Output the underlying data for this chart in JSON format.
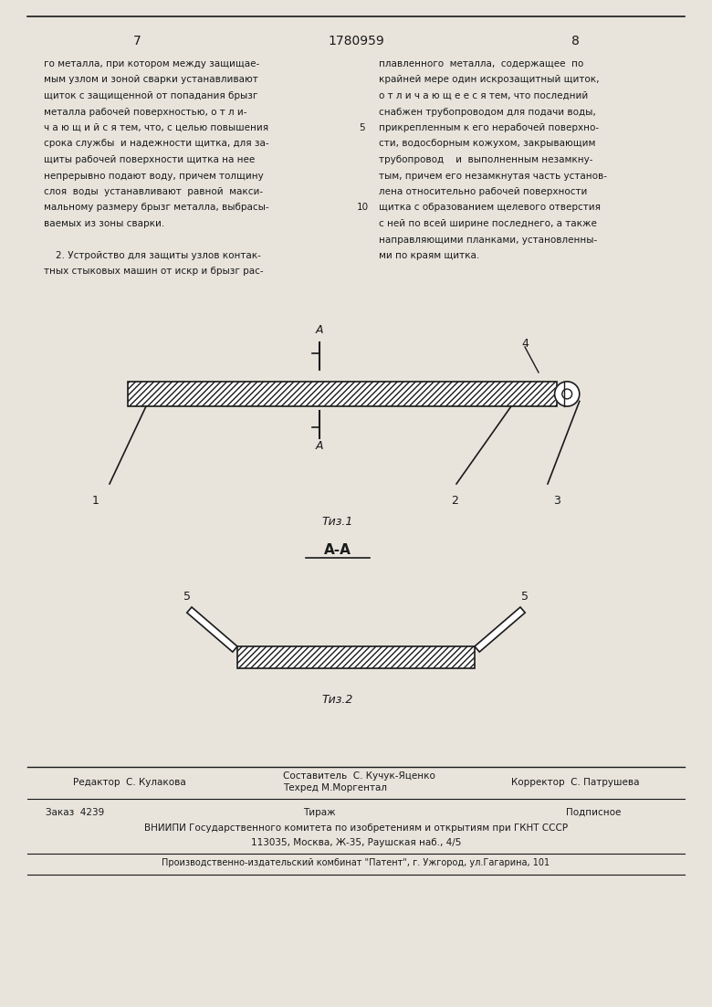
{
  "page_width": 7.8,
  "page_height": 11.03,
  "background_color": "#e8e4dc",
  "page_num_left": "7",
  "page_num_center": "1780959",
  "page_num_right": "8",
  "text_color": "#1a1a1a",
  "line_color": "#1a1a1a",
  "left_column_text": [
    "го металла, при котором между защищае-",
    "мым узлом и зоной сварки устанавливают",
    "щиток с защищенной от попадания брызг",
    "металла рабочей поверхностью, о т л и-",
    "ч а ю щ и й с я тем, что, с целью повышения",
    "срока службы  и надежности щитка, для за-",
    "щиты рабочей поверхности щитка на нее",
    "непрерывно подают воду, причем толщину",
    "слоя  воды  устанавливают  равной  макси-",
    "мальному размеру брызг металла, выбрасы-",
    "ваемых из зоны сварки.",
    "",
    "    2. Устройство для защиты узлов контак-",
    "тных стыковых машин от искр и брызг рас-"
  ],
  "right_column_text": [
    "плавленного  металла,  содержащее  по",
    "крайней мере один искрозащитный щиток,",
    "о т л и ч а ю щ е е с я тем, что последний",
    "снабжен трубопроводом для подачи воды,",
    "прикрепленным к его нерабочей поверхно-",
    "сти, водосборным кожухом, закрывающим",
    "трубопровод    и  выполненным незамкну-",
    "тым, причем его незамкнутая часть установ-",
    "лена относительно рабочей поверхности",
    "щитка с образованием щелевого отверстия",
    "с ней по всей ширине последнего, а также",
    "направляющими планками, установленны-",
    "ми по краям щитка."
  ],
  "line_number_5": "5",
  "line_number_10": "10",
  "fig1_label": "Τиз.1",
  "fig2_label": "Τиз.2",
  "section_label": "A-A",
  "footer_line1_left": "Редактор  С. Кулакова",
  "footer_line1_center_top": "Составитель  С. Кучук-Яценко",
  "footer_line1_center_bot": "Техред М.Моргентал",
  "footer_line1_right": "Корректор  С. Патрушева",
  "footer_zakaz": "Заказ  4239",
  "footer_tirazh": "Тираж",
  "footer_podpisnoe": "Подписное",
  "footer_vniipи": "ВНИИПИ Государственного комитета по изобретениям и открытиям при ГКНТ СССР",
  "footer_address": "113035, Москва, Ж-35, Раушская наб., 4/5",
  "footer_proizv": "Производственно-издательский комбинат \"Патент\", г. Ужгород, ул.Гагарина, 101"
}
